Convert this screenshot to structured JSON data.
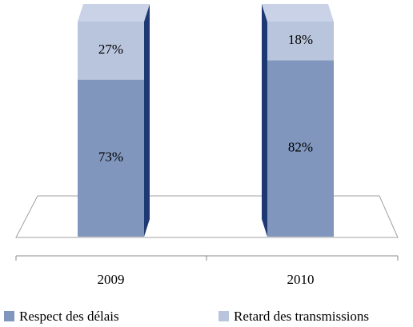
{
  "chart_data": {
    "type": "stacked_bar_3d",
    "categories": [
      "2009",
      "2010"
    ],
    "series": [
      {
        "name": "Respect des délais",
        "color": "#8096bd",
        "values": [
          73,
          82
        ],
        "value_labels": [
          "73%",
          "82%"
        ]
      },
      {
        "name": "Retard des transmissions",
        "color": "#b9c5dd",
        "values": [
          27,
          18
        ],
        "value_labels": [
          "27%",
          "18%"
        ]
      }
    ],
    "legend": "bottom"
  }
}
